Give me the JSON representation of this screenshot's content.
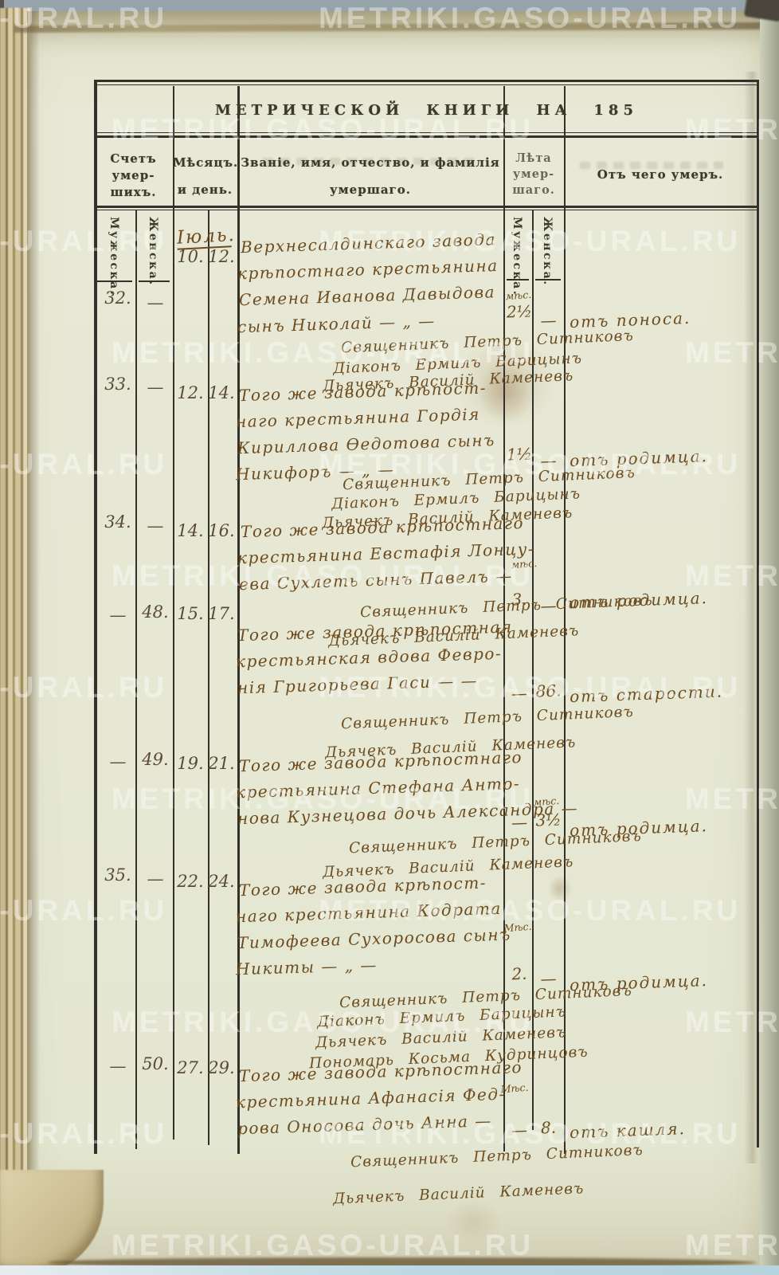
{
  "watermark": "METRIKI.GASO-URAL.RU",
  "colors": {
    "paper": "#e6e8d4",
    "ink": "#6d4b1e",
    "printed": "#3c392c",
    "table_line": "#33312a",
    "scan_top": "#97a3ab",
    "scan_bottom": "#bcd8e2"
  },
  "header": {
    "title": "МЕТРИЧЕСКОЙ КНИГИ НА 185",
    "col_count_l1": "Счетъ",
    "col_count_l2": "умер-",
    "col_count_l3": "шихъ.",
    "col_month_l1": "Мѣсяцъ.",
    "col_month_l2": "и день.",
    "col_name_l1": "Званіе, имя, отчество, и фамилія",
    "col_name_l2": "умершаго.",
    "col_age_l1": "Лѣта",
    "col_age_l2": "умер-",
    "col_age_l3": "шаго.",
    "col_cause": "Отъ чего умеръ.",
    "sub_male": "Мужеска.",
    "sub_female": "Женска."
  },
  "month_label": "Іюль.",
  "entries": [
    {
      "no_m": "32.",
      "no_f": "—",
      "d1": "10.",
      "d2": "12.",
      "lines": [
        "Верхнесалдинскаго завода",
        "крѣпостнаго крестьянина",
        "Семена Иванова Давыдова",
        "сынъ Николай — „ —"
      ],
      "age_note": "мѣс.",
      "age_m": "2½",
      "age_f": "—",
      "cause": "отъ поноса.",
      "sigs": [
        "Священникъ Петръ Ситниковъ",
        "Діаконъ Ермилъ Барицынъ",
        "Дьячекъ Василій Каменевъ"
      ]
    },
    {
      "no_m": "33.",
      "no_f": "—",
      "d1": "12.",
      "d2": "14.",
      "lines": [
        "Того же завода крѣпост-",
        "наго крестьянина Гордія",
        "Кириллова Ѳедотова сынъ",
        "Никифоръ — „ —"
      ],
      "age_note": "",
      "age_m": "1½",
      "age_f": "—",
      "cause": "отъ родимца.",
      "sigs": [
        "Священникъ Петръ Ситниковъ",
        "Діаконъ Ермилъ Барицынъ",
        "Дьячекъ Василій Каменевъ"
      ]
    },
    {
      "no_m": "34.",
      "no_f": "—",
      "d1": "14.",
      "d2": "16.",
      "lines": [
        "Того же завода крѣпостнаго",
        "крестьянина Евстафія Лонцу-",
        "ева Сухлеть сынъ Павелъ —"
      ],
      "age_note": "мѣс.",
      "age_m": "3.",
      "age_f": "—",
      "cause": "отъ родимца.",
      "sigs": [
        "Священникъ Петръ Ситниковъ",
        "Дьячекъ Василій Каменевъ"
      ]
    },
    {
      "no_m": "—",
      "no_f": "48.",
      "d1": "15.",
      "d2": "17.",
      "lines": [
        "Того же завода крѣпостная",
        "крестьянская вдова Февро-",
        "нія Григорьева Гаси — —"
      ],
      "age_note": "",
      "age_m": "—",
      "age_f": "86.",
      "cause": "отъ старости.",
      "sigs": [
        "Священникъ Петръ Ситниковъ",
        "Дьячекъ Василій Каменевъ"
      ]
    },
    {
      "no_m": "—",
      "no_f": "49.",
      "d1": "19.",
      "d2": "21.",
      "lines": [
        "Того же завода крѣпостнаго",
        "крестьянина Стефана Анто-",
        "нова Кузнецова дочь Александра —"
      ],
      "age_note": "мѣс.",
      "age_m": "—",
      "age_f": "3½",
      "cause": "отъ родимца.",
      "sigs": [
        "Священникъ Петръ Ситниковъ",
        "Дьячекъ Василій Каменевъ"
      ]
    },
    {
      "no_m": "35.",
      "no_f": "—",
      "d1": "22.",
      "d2": "24.",
      "lines": [
        "Того же завода крѣпост-",
        "наго крестьянина Кодрата",
        "Тимофеева Сухоросова сынъ",
        "Никиты — „ —"
      ],
      "age_note": "Мѣс.",
      "age_m": "2.",
      "age_f": "—",
      "cause": "отъ родимца.",
      "sigs": [
        "Священникъ Петръ Ситниковъ",
        "Діаконъ Ермилъ Барицынъ",
        "Дьячекъ Василій Каменевъ",
        "Пономарь Косьма Кудринцовъ"
      ]
    },
    {
      "no_m": "—",
      "no_f": "50.",
      "d1": "27.",
      "d2": "29.",
      "lines": [
        "Того же завода крѣпостнаго",
        "крестьянина Афанасія Фед-",
        "рова Оносова дочь Анна —"
      ],
      "age_note": "Мѣс.",
      "age_m": "—",
      "age_f": "8.",
      "cause": "отъ кашля.",
      "sigs": [
        "Священникъ Петръ Ситниковъ",
        "Дьячекъ Василій Каменевъ"
      ]
    }
  ]
}
